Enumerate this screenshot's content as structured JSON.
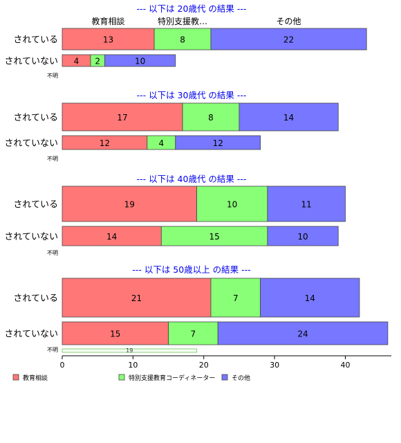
{
  "chart_data": {
    "type": "bar",
    "orientation": "horizontal",
    "stacked": true,
    "series_names": [
      "教育相談",
      "特別支援教育コーディネーター",
      "その他"
    ],
    "column_headers": [
      "教育相談",
      "特別支援教…",
      "その他"
    ],
    "colors": [
      "#ff7777",
      "#88ff77",
      "#7777ff"
    ],
    "na_fill": "#f4fff2",
    "na_stroke": "#88cc77",
    "xaxis": {
      "ticks": [
        0,
        10,
        20,
        30,
        40
      ],
      "xlim": [
        0,
        46.5
      ]
    },
    "legend_position": "bottom",
    "panels": [
      {
        "title": "--- 以下は 20歳代 の結果 ---",
        "rows": [
          {
            "label": "されている",
            "values": [
              13,
              8,
              22
            ]
          },
          {
            "label": "されていない",
            "values": [
              4,
              2,
              10
            ]
          },
          {
            "label": "不明",
            "values": [
              0,
              0,
              0
            ]
          }
        ]
      },
      {
        "title": "--- 以下は 30歳代 の結果 ---",
        "rows": [
          {
            "label": "されている",
            "values": [
              17,
              8,
              14
            ]
          },
          {
            "label": "されていない",
            "values": [
              12,
              4,
              12
            ]
          },
          {
            "label": "不明",
            "values": [
              0,
              0,
              0
            ]
          }
        ]
      },
      {
        "title": "--- 以下は 40歳代 の結果 ---",
        "rows": [
          {
            "label": "されている",
            "values": [
              19,
              10,
              11
            ]
          },
          {
            "label": "されていない",
            "values": [
              14,
              15,
              10
            ]
          },
          {
            "label": "不明",
            "values": [
              0,
              0,
              0
            ]
          }
        ]
      },
      {
        "title": "--- 以下は 50歳以上 の結果 ---",
        "rows": [
          {
            "label": "されている",
            "values": [
              21,
              7,
              14
            ]
          },
          {
            "label": "されていない",
            "values": [
              15,
              7,
              24
            ]
          },
          {
            "label": "不明",
            "values": [
              0,
              0,
              0
            ],
            "na_value": 19
          }
        ]
      }
    ]
  }
}
